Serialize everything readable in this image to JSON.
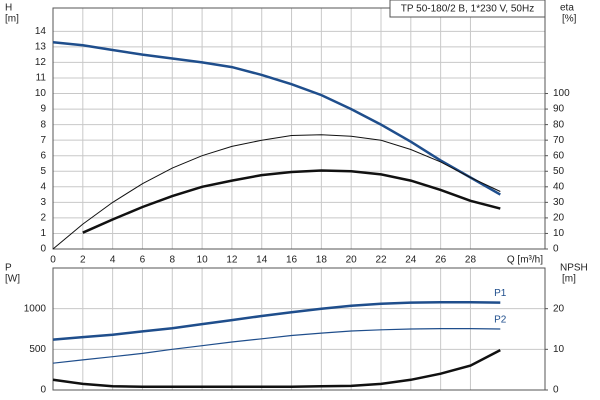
{
  "chart_data": [
    {
      "type": "line",
      "title": "TP 50-180/2 B, 1*230 V, 50Hz",
      "y_label": "H",
      "y_unit": "[m]",
      "y2_label": "eta",
      "y2_unit": "[%]",
      "x_label": "Q [m³/h]",
      "x": [
        0,
        2,
        4,
        6,
        8,
        10,
        12,
        14,
        16,
        18,
        20,
        22,
        24,
        26,
        28,
        30
      ],
      "xlim": [
        0,
        33
      ],
      "xticks": [
        0,
        2,
        4,
        6,
        8,
        10,
        12,
        14,
        16,
        18,
        20,
        22,
        24,
        26,
        28
      ],
      "ylim": [
        0,
        15.5
      ],
      "yticks": [
        0,
        1,
        2,
        3,
        4,
        5,
        6,
        7,
        8,
        9,
        10,
        11,
        12,
        13,
        14
      ],
      "y2lim": [
        0,
        155
      ],
      "y2ticks": [
        0,
        10,
        20,
        30,
        40,
        50,
        60,
        70,
        80,
        90,
        100
      ],
      "grid": true,
      "series": [
        {
          "color": "#1f4e8c",
          "width": 2.5,
          "values": [
            13.3,
            13.1,
            12.8,
            12.5,
            12.25,
            12.0,
            11.7,
            11.2,
            10.6,
            9.9,
            9.0,
            8.0,
            6.9,
            5.7,
            4.6,
            3.5
          ]
        },
        {
          "color": "#111111",
          "width": 1,
          "axis": "y2",
          "values": [
            0,
            16,
            30,
            42,
            52,
            60,
            66,
            70,
            73,
            73.5,
            72.5,
            70,
            64,
            56,
            46,
            37
          ]
        },
        {
          "color": "#111111",
          "width": 2.5,
          "axis": "y2",
          "values": [
            null,
            10.5,
            19,
            27,
            34,
            40,
            44,
            47.5,
            49.5,
            50.5,
            50,
            48,
            44,
            38,
            31,
            26
          ]
        }
      ]
    },
    {
      "type": "line",
      "y_label": "P",
      "y_unit": "[W]",
      "y2_label": "NPSH",
      "y2_unit": "[m]",
      "x": [
        0,
        2,
        4,
        6,
        8,
        10,
        12,
        14,
        16,
        18,
        20,
        22,
        24,
        26,
        28,
        30
      ],
      "xlim": [
        0,
        33
      ],
      "xticks": [
        0,
        2,
        4,
        6,
        8,
        10,
        12,
        14,
        16,
        18,
        20,
        22,
        24,
        26,
        28
      ],
      "ylim": [
        0,
        1500
      ],
      "yticks": [
        0,
        500,
        1000
      ],
      "y2lim": [
        0,
        30
      ],
      "y2ticks": [
        0,
        10,
        20
      ],
      "grid": true,
      "series": [
        {
          "name": "P1",
          "color": "#1f4e8c",
          "width": 2.5,
          "values": [
            620,
            650,
            680,
            720,
            760,
            810,
            860,
            910,
            955,
            1000,
            1035,
            1060,
            1075,
            1080,
            1080,
            1075
          ]
        },
        {
          "name": "P2",
          "color": "#1f4e8c",
          "width": 1.2,
          "values": [
            330,
            370,
            410,
            450,
            500,
            545,
            590,
            630,
            670,
            700,
            725,
            740,
            750,
            755,
            755,
            750
          ]
        },
        {
          "color": "#111111",
          "width": 2.5,
          "axis": "y2",
          "values": [
            2.5,
            1.5,
            0.9,
            0.8,
            0.8,
            0.8,
            0.8,
            0.8,
            0.8,
            0.9,
            1.0,
            1.5,
            2.5,
            4.0,
            6.0,
            9.8
          ]
        }
      ]
    }
  ]
}
